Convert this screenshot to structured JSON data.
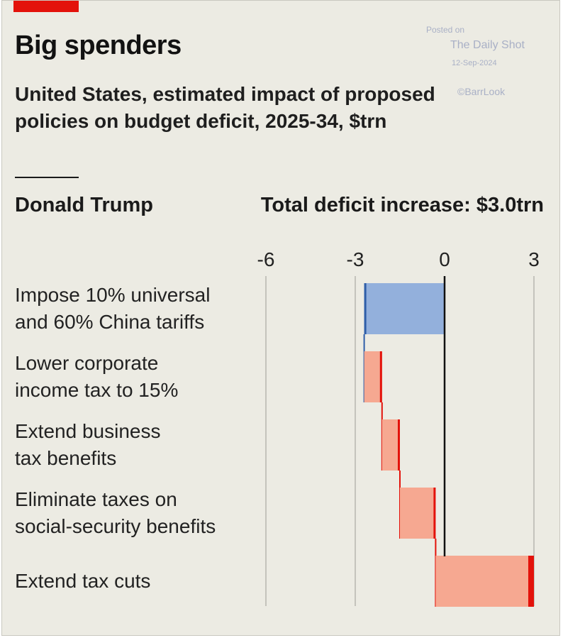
{
  "header": {
    "title": "Big spenders",
    "subtitle": "United States, estimated impact of proposed policies on budget deficit, 2025-34, $trn"
  },
  "watermark": {
    "posted_on": "Posted on",
    "source_name": "The Daily Shot",
    "date": "12-Sep-2024",
    "credit": "©BarrLook"
  },
  "panel": {
    "name": "Donald Trump",
    "total": "Total deficit increase: $3.0trn"
  },
  "colors": {
    "accent": "#e3120b",
    "decrease_fill": "#93b0dc",
    "decrease_edge": "#2f5ea8",
    "increase_fill": "#f6a891",
    "increase_edge": "#e3120b",
    "gridline": "#c4c3bc",
    "zero_line": "#111111"
  },
  "chart_data": {
    "type": "bar",
    "subtype": "waterfall",
    "orientation": "horizontal",
    "xlim": [
      -7,
      3.3
    ],
    "ticks": [
      -6,
      -3,
      0,
      3
    ],
    "tick_labels": [
      "-6",
      "-3",
      "0",
      "3"
    ],
    "categories": [
      "Impose 10% universal and 60% China tariffs",
      "Lower corporate income tax to 15%",
      "Extend business tax benefits",
      "Eliminate taxes on social-security benefits",
      "Extend tax cuts"
    ],
    "label_lines": [
      [
        "Impose 10% universal",
        "and 60% China tariffs"
      ],
      [
        "Lower corporate",
        "income tax to 15%"
      ],
      [
        "Extend business",
        "tax benefits"
      ],
      [
        "Eliminate taxes on",
        "social-security benefits"
      ],
      [
        "Extend tax cuts"
      ]
    ],
    "values": [
      -2.7,
      0.6,
      0.6,
      1.2,
      3.3
    ],
    "cumulative_start": [
      0,
      -2.7,
      -2.1,
      -1.5,
      -0.3
    ],
    "cumulative_end": [
      -2.7,
      -2.1,
      -1.5,
      -0.3,
      3.0
    ],
    "total": 3.0,
    "grid": true
  }
}
